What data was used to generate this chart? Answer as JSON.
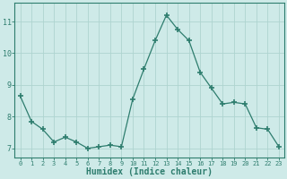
{
  "x": [
    0,
    1,
    2,
    3,
    4,
    5,
    6,
    7,
    8,
    9,
    10,
    11,
    12,
    13,
    14,
    15,
    16,
    17,
    18,
    19,
    20,
    21,
    22,
    23
  ],
  "y": [
    8.65,
    7.85,
    7.6,
    7.2,
    7.35,
    7.2,
    7.0,
    7.05,
    7.1,
    7.05,
    8.55,
    9.5,
    10.4,
    11.2,
    10.75,
    10.4,
    9.4,
    8.9,
    8.4,
    8.45,
    8.4,
    7.65,
    7.6,
    7.05
  ],
  "line_color": "#2e7d6e",
  "marker": "+",
  "marker_size": 4,
  "marker_lw": 1.2,
  "bg_color": "#ceeae8",
  "grid_color": "#aed4d0",
  "axis_color": "#2e7d6e",
  "tick_color": "#2e7d6e",
  "xlabel": "Humidex (Indice chaleur)",
  "xlabel_fontsize": 7,
  "xlabel_color": "#2e7d6e",
  "ytick_labels": [
    "7",
    "8",
    "9",
    "10",
    "11"
  ],
  "ytick_values": [
    7,
    8,
    9,
    10,
    11
  ],
  "ylim": [
    6.7,
    11.6
  ],
  "xlim": [
    -0.5,
    23.5
  ],
  "xtick_labels": [
    "0",
    "1",
    "2",
    "3",
    "4",
    "5",
    "6",
    "7",
    "8",
    "9",
    "10",
    "11",
    "12",
    "13",
    "14",
    "15",
    "16",
    "17",
    "18",
    "19",
    "20",
    "21",
    "22",
    "23"
  ]
}
